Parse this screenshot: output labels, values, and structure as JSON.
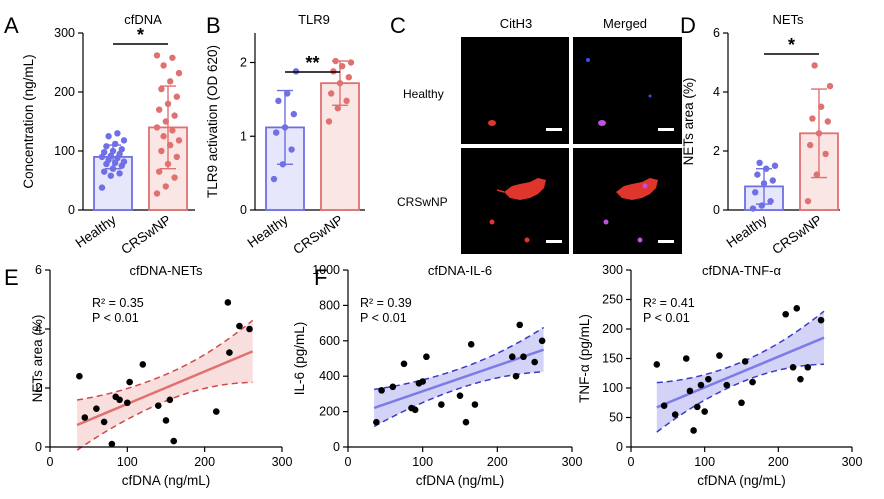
{
  "panels": {
    "A": "A",
    "B": "B",
    "C": "C",
    "D": "D",
    "E": "E",
    "F": "F"
  },
  "colors": {
    "healthy": "#6f6fe6",
    "crswnp": "#e07171",
    "healthy_fill": "#e7e7fb",
    "crswnp_fill": "#fbe6e6",
    "reg_blue_band": "#c4c4f4",
    "reg_blue_line": "#7c7ce8",
    "reg_blue_dash": "#3b3bc9",
    "reg_red_band": "#f7d3d3",
    "reg_red_line": "#e07171",
    "reg_red_dash": "#d04a4a"
  },
  "microscopy": {
    "col_labels": [
      "CitH3",
      "Merged"
    ],
    "row_labels": [
      "Healthy",
      "CRSwNP"
    ]
  },
  "chart_data": [
    {
      "id": "A",
      "type": "bar",
      "title": "cfDNA",
      "ylabel": "Concentration (ng/mL)",
      "categories": [
        "Healthy",
        "CRSwNP"
      ],
      "ylim": [
        0,
        300
      ],
      "yticks": [
        "0",
        "100",
        "200",
        "300"
      ],
      "bars": [
        {
          "name": "Healthy",
          "mean": 90,
          "sd": 20,
          "points": [
            38,
            58,
            62,
            65,
            70,
            75,
            78,
            80,
            82,
            85,
            88,
            90,
            92,
            95,
            98,
            100,
            103,
            108,
            112,
            118,
            125,
            130
          ]
        },
        {
          "name": "CRSwNP",
          "mean": 140,
          "sd": 70,
          "points": [
            28,
            40,
            55,
            65,
            78,
            90,
            100,
            110,
            118,
            125,
            135,
            140,
            150,
            160,
            170,
            180,
            192,
            205,
            218,
            232,
            245,
            258,
            262
          ]
        }
      ],
      "significance": "*"
    },
    {
      "id": "B",
      "type": "bar",
      "title": "TLR9",
      "ylabel": "TLR9 activation (OD 620)",
      "categories": [
        "Healthy",
        "CRSwNP"
      ],
      "ylim": [
        0,
        2.4
      ],
      "yticks": [
        "0",
        "1",
        "2"
      ],
      "bars": [
        {
          "name": "Healthy",
          "mean": 1.12,
          "sd": 0.5,
          "points": [
            0.42,
            0.62,
            0.82,
            1.05,
            1.12,
            1.3,
            1.48,
            1.58,
            1.88
          ]
        },
        {
          "name": "CRSwNP",
          "mean": 1.72,
          "sd": 0.3,
          "points": [
            1.2,
            1.38,
            1.48,
            1.58,
            1.72,
            1.8,
            1.88,
            1.95,
            2.0,
            2.02
          ]
        }
      ],
      "significance": "**"
    },
    {
      "id": "D",
      "type": "bar",
      "title": "NETs",
      "ylabel": "NETs area (%)",
      "categories": [
        "Healthy",
        "CRSwNP"
      ],
      "ylim": [
        0,
        6
      ],
      "yticks": [
        "0",
        "2",
        "4",
        "6"
      ],
      "bars": [
        {
          "name": "Healthy",
          "mean": 0.8,
          "sd": 0.6,
          "points": [
            0.05,
            0.15,
            0.3,
            0.6,
            0.9,
            1.0,
            1.2,
            1.4,
            1.5,
            1.6
          ]
        },
        {
          "name": "CRSwNP",
          "mean": 2.6,
          "sd": 1.5,
          "points": [
            0.3,
            1.2,
            1.9,
            2.2,
            2.6,
            3.0,
            3.1,
            3.5,
            4.2,
            4.9
          ]
        }
      ],
      "significance": "*"
    },
    {
      "id": "E",
      "type": "scatter",
      "title": "cfDNA-NETs",
      "xlabel": "cfDNA (ng/mL)",
      "ylabel": "NETs area (%)",
      "xlim": [
        0,
        300
      ],
      "ylim": [
        0,
        6
      ],
      "xticks": [
        "0",
        "100",
        "200",
        "300"
      ],
      "yticks": [
        "0",
        "2",
        "4",
        "6"
      ],
      "r2": "R² = 0.35",
      "p": "P < 0.01",
      "points": [
        [
          38,
          2.4
        ],
        [
          45,
          1.0
        ],
        [
          60,
          1.3
        ],
        [
          70,
          0.85
        ],
        [
          80,
          0.1
        ],
        [
          85,
          1.7
        ],
        [
          90,
          1.6
        ],
        [
          100,
          1.5
        ],
        [
          103,
          2.2
        ],
        [
          120,
          2.8
        ],
        [
          140,
          1.4
        ],
        [
          150,
          0.9
        ],
        [
          155,
          1.6
        ],
        [
          160,
          0.2
        ],
        [
          215,
          1.2
        ],
        [
          230,
          4.9
        ],
        [
          232,
          3.2
        ],
        [
          245,
          4.1
        ],
        [
          258,
          4.0
        ]
      ],
      "fit": {
        "intercept": 0.36,
        "slope": 0.011,
        "ci_at_min": 0.85,
        "ci_at_mid": 0.45,
        "ci_at_max": 1.05
      }
    },
    {
      "id": "F1",
      "type": "scatter",
      "title": "cfDNA-IL-6",
      "xlabel": "cfDNA (ng/mL)",
      "ylabel": "IL-6 (pg/mL)",
      "xlim": [
        0,
        300
      ],
      "ylim": [
        0,
        1000
      ],
      "xticks": [
        "0",
        "100",
        "200",
        "300"
      ],
      "yticks": [
        "0",
        "200",
        "400",
        "600",
        "800",
        "1000"
      ],
      "r2": "R² = 0.39",
      "p": "P < 0.01",
      "points": [
        [
          38,
          140
        ],
        [
          45,
          320
        ],
        [
          60,
          340
        ],
        [
          75,
          470
        ],
        [
          85,
          220
        ],
        [
          90,
          210
        ],
        [
          95,
          360
        ],
        [
          100,
          370
        ],
        [
          105,
          510
        ],
        [
          125,
          240
        ],
        [
          150,
          290
        ],
        [
          158,
          140
        ],
        [
          165,
          580
        ],
        [
          170,
          240
        ],
        [
          220,
          510
        ],
        [
          225,
          400
        ],
        [
          230,
          690
        ],
        [
          235,
          510
        ],
        [
          250,
          480
        ],
        [
          260,
          600
        ]
      ],
      "fit": {
        "intercept": 170,
        "slope": 1.45,
        "ci_at_min": 105,
        "ci_at_mid": 55,
        "ci_at_max": 125
      }
    },
    {
      "id": "F2",
      "type": "scatter",
      "title": "cfDNA-TNF-α",
      "xlabel": "cfDNA (ng/mL)",
      "ylabel": "TNF-α (pg/mL)",
      "xlim": [
        0,
        300
      ],
      "ylim": [
        0,
        300
      ],
      "xticks": [
        "0",
        "100",
        "200",
        "300"
      ],
      "yticks": [
        "0",
        "50",
        "100",
        "150",
        "200",
        "250",
        "300"
      ],
      "r2": "R² = 0.41",
      "p": "P < 0.01",
      "points": [
        [
          35,
          140
        ],
        [
          45,
          70
        ],
        [
          60,
          55
        ],
        [
          75,
          150
        ],
        [
          80,
          95
        ],
        [
          85,
          28
        ],
        [
          90,
          68
        ],
        [
          95,
          105
        ],
        [
          100,
          60
        ],
        [
          105,
          115
        ],
        [
          120,
          155
        ],
        [
          130,
          105
        ],
        [
          150,
          75
        ],
        [
          155,
          145
        ],
        [
          165,
          110
        ],
        [
          210,
          225
        ],
        [
          220,
          135
        ],
        [
          225,
          235
        ],
        [
          230,
          115
        ],
        [
          240,
          135
        ],
        [
          258,
          215
        ]
      ],
      "fit": {
        "intercept": 49,
        "slope": 0.52,
        "ci_at_min": 42,
        "ci_at_mid": 17,
        "ci_at_max": 45
      }
    }
  ]
}
